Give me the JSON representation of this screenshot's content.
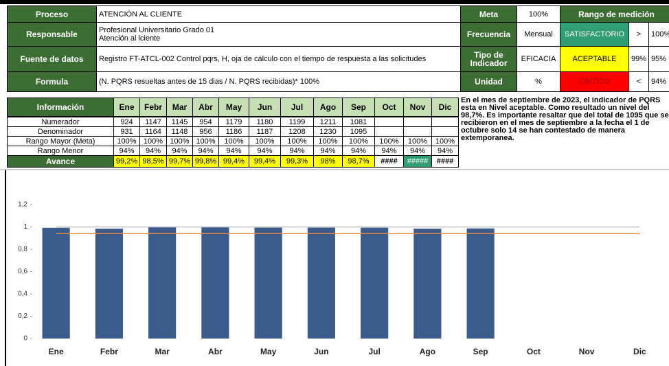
{
  "header": {
    "proceso": {
      "label": "Proceso",
      "value": "ATENCIÓN AL CLIENTE"
    },
    "responsable": {
      "label": "Responsable",
      "value": [
        "Profesional Universitario Grado 01",
        "Atención al lciente"
      ]
    },
    "fuente": {
      "label": "Fuente de datos",
      "value": "Registro FT-ATCL-002 Control pqrs, H, oja de cálculo con el tiempo de respuesta a las solicitudes"
    },
    "formula": {
      "label": "Formula",
      "value": "(N. PQRS resueltas antes de 15 dias / N. PQRS recibidas)* 100%"
    },
    "meta": {
      "label": "Meta",
      "value": "100%"
    },
    "frecuencia": {
      "label": "Frecuencia",
      "value": "Mensual"
    },
    "tipo": {
      "label": "Tipo de Indicador",
      "value": "EFICACIA"
    },
    "unidad": {
      "label": "Unidad",
      "value": "%"
    },
    "rango": {
      "title": "Rango de medición",
      "levels": [
        {
          "name": "SATISFACTORIO",
          "symbol": ">",
          "value": "100%",
          "color": "#2f9e72"
        },
        {
          "name": "ACEPTABLE",
          "symbol": "99%",
          "value": "95%",
          "color": "#ffff00"
        },
        {
          "name": "CRÍTICO",
          "symbol": "<",
          "value": "94%",
          "color": "#ff0000"
        }
      ]
    }
  },
  "info": {
    "header": "Información",
    "months": [
      "Ene",
      "Febr",
      "Mar",
      "Abr",
      "May",
      "Jun",
      "Jul",
      "Ago",
      "Sep",
      "Oct",
      "Nov",
      "Dic"
    ],
    "rows": [
      {
        "label": "Numerador",
        "values": [
          924,
          1147,
          1145,
          954,
          1179,
          1180,
          1199,
          1211,
          1081,
          null,
          null,
          null
        ]
      },
      {
        "label": "Denominador",
        "values": [
          931,
          1164,
          1148,
          956,
          1186,
          1187,
          1208,
          1230,
          1095,
          null,
          null,
          null
        ]
      },
      {
        "label": "Rango Mayor (Meta)",
        "values": [
          "100%",
          "100%",
          "100%",
          "100%",
          "100%",
          "100%",
          "100%",
          "100%",
          "100%",
          "100%",
          "100%",
          "100%"
        ]
      },
      {
        "label": "Rango Menor",
        "values": [
          "94%",
          "94%",
          "94%",
          "94%",
          "94%",
          "94%",
          "94%",
          "94%",
          "94%",
          "94%",
          "94%",
          "94%"
        ]
      },
      {
        "label": "Avance",
        "values": [
          "99,2%",
          "98,5%",
          "99,7%",
          "99,8%",
          "99,4%",
          "99,4%",
          "99,3%",
          "98%",
          "98,7%",
          "####",
          "#####",
          "####"
        ],
        "colors": [
          "#ffff00",
          "#ffff00",
          "#ffff00",
          "#ffff00",
          "#ffff00",
          "#ffff00",
          "#ffff00",
          "#ffff00",
          "#ffff00",
          "#ffffff",
          "#2f9e72",
          "#ffffff"
        ]
      }
    ],
    "note": "En el mes de septiembre de 2023, el indicador de PQRS esta en Nivel aceptable. Como resultado un nivel  del 98,7%. Es importante resaltar que del total de 1095 que se recibieron en el mes de septiembre a la fecha el 1 de octubre solo 14 se han contestado de manera extemporanea."
  },
  "chart_data": {
    "type": "bar",
    "categories": [
      "Ene",
      "Febr",
      "Mar",
      "Abr",
      "May",
      "Jun",
      "Jul",
      "Ago",
      "Sep",
      "Oct",
      "Nov",
      "Dic"
    ],
    "series": [
      {
        "type": "bar",
        "color": "#3b5b8c",
        "values": [
          0.992,
          0.985,
          0.997,
          0.998,
          0.994,
          0.994,
          0.993,
          0.985,
          0.987,
          null,
          null,
          null
        ]
      },
      {
        "type": "line",
        "color": "#c0c0c0",
        "values": [
          1,
          1,
          1,
          1,
          1,
          1,
          1,
          1,
          1,
          1,
          1,
          1
        ]
      },
      {
        "type": "line",
        "color": "#f08a3c",
        "values": [
          0.94,
          0.94,
          0.94,
          0.94,
          0.94,
          0.94,
          0.94,
          0.94,
          0.94,
          0.94,
          0.94,
          0.94
        ]
      }
    ],
    "ylim": [
      0,
      1.2
    ],
    "yticks": [
      0,
      {
        "value": 0.2,
        "label": "0,2"
      },
      {
        "value": 0.4,
        "label": "0,4"
      },
      {
        "value": 0.6,
        "label": "0,6"
      },
      {
        "value": 0.8,
        "label": "0,8"
      },
      1,
      {
        "value": 1.2,
        "label": "1,2"
      }
    ]
  }
}
